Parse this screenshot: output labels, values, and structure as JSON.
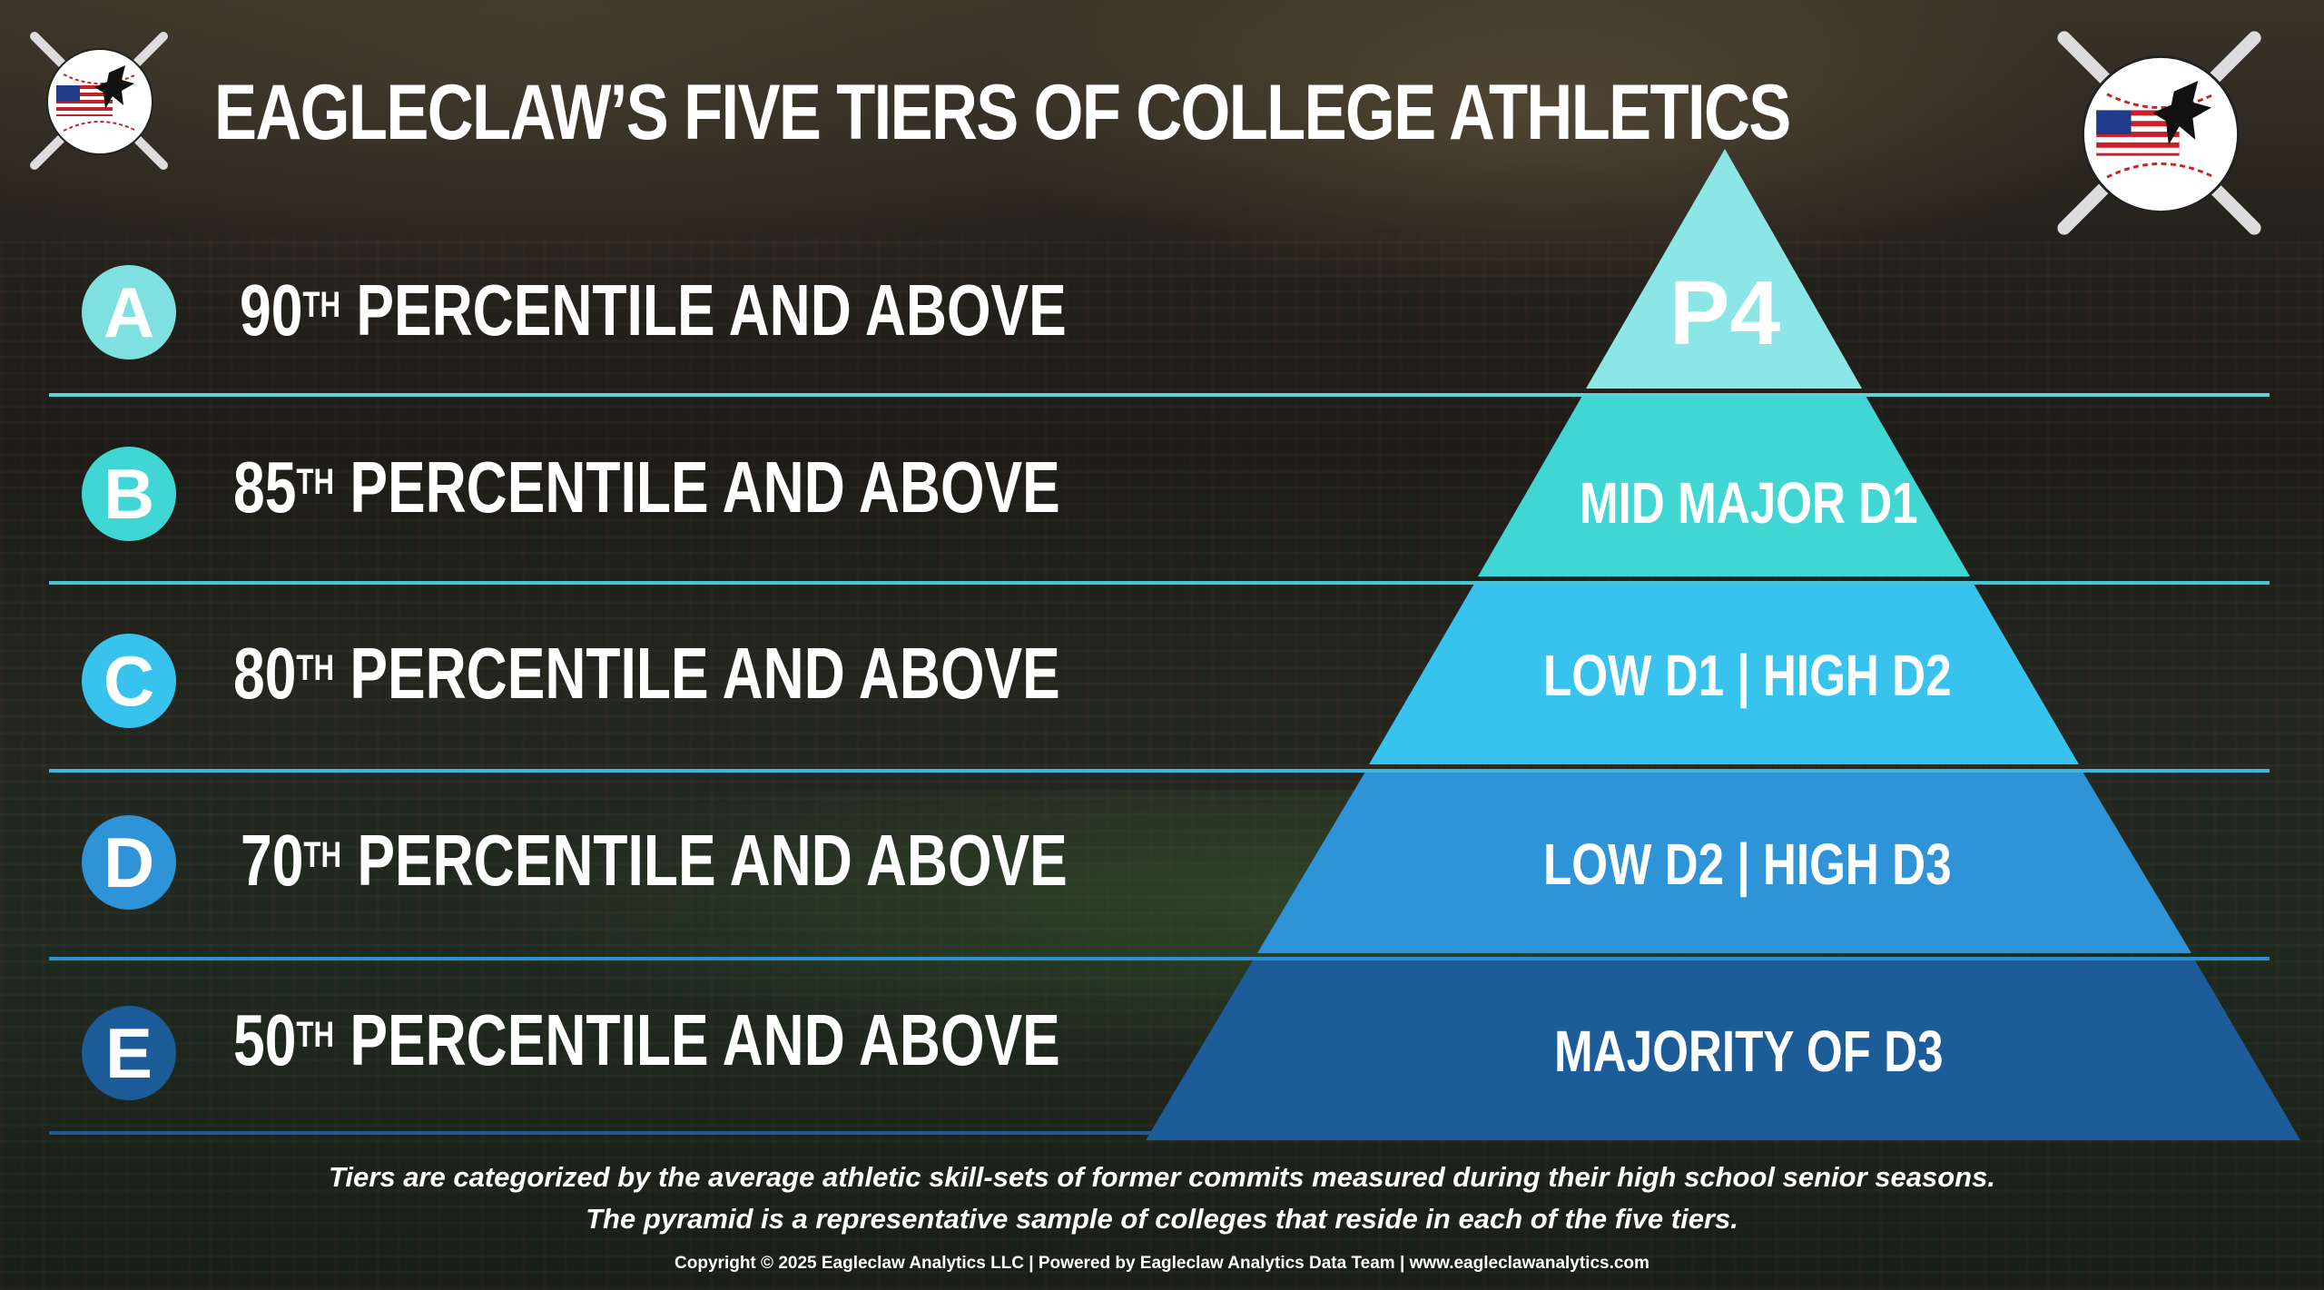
{
  "title": "EAGLECLAW’S FIVE TIERS OF COLLEGE ATHLETICS",
  "tiers": [
    {
      "letter": "A",
      "percent_num": "90",
      "percent_ord": "TH",
      "percent_rest": " PERCENTILE AND ABOVE",
      "pyramid_label": "P4",
      "color": "#8de6e6"
    },
    {
      "letter": "B",
      "percent_num": "85",
      "percent_ord": "TH",
      "percent_rest": " PERCENTILE AND ABOVE",
      "pyramid_label": "MID MAJOR D1",
      "color": "#3fd6d4"
    },
    {
      "letter": "C",
      "percent_num": "80",
      "percent_ord": "TH",
      "percent_rest": " PERCENTILE AND ABOVE",
      "pyramid_label": "LOW D1 | HIGH D2",
      "color": "#38c3ee"
    },
    {
      "letter": "D",
      "percent_num": "70",
      "percent_ord": "TH",
      "percent_rest": " PERCENTILE AND ABOVE",
      "pyramid_label": "LOW D2 | HIGH D3",
      "color": "#2e93d7"
    },
    {
      "letter": "E",
      "percent_num": "50",
      "percent_ord": "TH",
      "percent_rest": " PERCENTILE AND ABOVE",
      "pyramid_label": "MAJORITY OF D3",
      "color": "#1c5c99"
    }
  ],
  "caption_line1": "Tiers are categorized by the average athletic skill-sets of former commits measured during their high school senior seasons.",
  "caption_line2": "The pyramid is a representative sample of colleges that reside in each of the five tiers.",
  "copyright": "Copyright © 2025 Eagleclaw Analytics LLC | Powered by Eagleclaw Analytics Data Team | www.eagleclawanalytics.com"
}
